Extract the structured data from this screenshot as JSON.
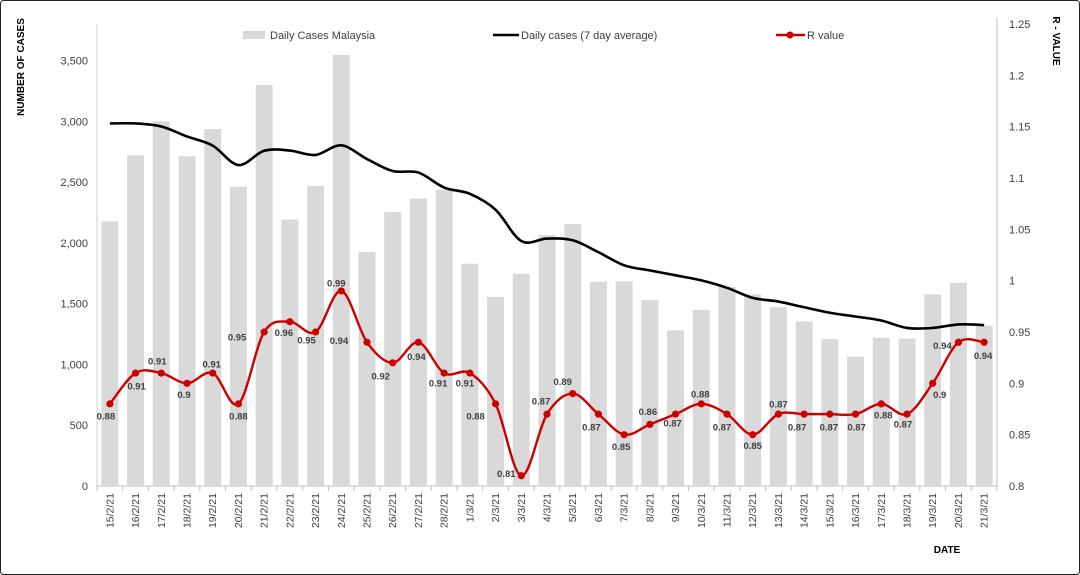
{
  "chart_data": {
    "type": "bar",
    "xlabel": "DATE",
    "ylabel": "NUMBER OF CASES",
    "y2label": "R - VALUE",
    "ylim": [
      0,
      3800
    ],
    "y2lim": [
      0.8,
      1.25
    ],
    "grid": false,
    "yticks": [
      {
        "value": 0,
        "label": "0"
      },
      {
        "value": 500,
        "label": "500"
      },
      {
        "value": 1000,
        "label": "1,000"
      },
      {
        "value": 1500,
        "label": "1,500"
      },
      {
        "value": 2000,
        "label": "2,000"
      },
      {
        "value": 2500,
        "label": "2,500"
      },
      {
        "value": 3000,
        "label": "3,000"
      },
      {
        "value": 3500,
        "label": "3,500"
      }
    ],
    "y2ticks": [
      {
        "value": 0.8,
        "label": "0.8"
      },
      {
        "value": 0.85,
        "label": "0.85"
      },
      {
        "value": 0.9,
        "label": "0.9"
      },
      {
        "value": 0.95,
        "label": "0.95"
      },
      {
        "value": 1.0,
        "label": "1"
      },
      {
        "value": 1.05,
        "label": "1.05"
      },
      {
        "value": 1.1,
        "label": "1.1"
      },
      {
        "value": 1.15,
        "label": "1.15"
      },
      {
        "value": 1.2,
        "label": "1.2"
      },
      {
        "value": 1.25,
        "label": "1.25"
      }
    ],
    "categories": [
      "15/2/21",
      "16/2/21",
      "17/2/21",
      "18/2/21",
      "19/2/21",
      "20/2/21",
      "21/2/21",
      "22/2/21",
      "23/2/21",
      "24/2/21",
      "25/2/21",
      "26/2/21",
      "27/2/21",
      "28/2/21",
      "1/3/21",
      "2/3/21",
      "3/3/21",
      "4/3/21",
      "5/3/21",
      "6/3/21",
      "7/3/21",
      "8/3/21",
      "9/3/21",
      "10/3/21",
      "11/3/21",
      "12/3/21",
      "13/3/21",
      "14/3/21",
      "15/3/21",
      "16/3/21",
      "17/3/21",
      "18/3/21",
      "19/3/21",
      "20/3/21",
      "21/3/21"
    ],
    "series": [
      {
        "name": "Daily Cases Malaysia",
        "type": "bar",
        "secondary_axis": false,
        "color": "#d9d9d9",
        "values": [
          2176,
          2720,
          2998,
          2712,
          2936,
          2461,
          3297,
          2192,
          2468,
          3545,
          1924,
          2253,
          2364,
          2437,
          1828,
          1555,
          1745,
          2063,
          2154,
          1680,
          1683,
          1529,
          1280,
          1448,
          1637,
          1575,
          1470,
          1354,
          1208,
          1063,
          1219,
          1213,
          1575,
          1671,
          1319
        ]
      },
      {
        "name": "Daily cases (7 day average)",
        "type": "line",
        "secondary_axis": false,
        "color": "#000000",
        "values": [
          2982,
          2982,
          2957,
          2875,
          2800,
          2640,
          2757,
          2759,
          2723,
          2802,
          2689,
          2591,
          2578,
          2455,
          2403,
          2272,
          2015,
          2035,
          2021,
          1923,
          1815,
          1773,
          1733,
          1691,
          1630,
          1547,
          1517,
          1470,
          1425,
          1394,
          1361,
          1300,
          1300,
          1329,
          1324
        ]
      },
      {
        "name": "R value",
        "type": "line",
        "secondary_axis": true,
        "color": "#cc0000",
        "values": [
          0.88,
          0.91,
          0.91,
          0.9,
          0.91,
          0.88,
          0.95,
          0.96,
          0.95,
          0.99,
          0.94,
          0.92,
          0.94,
          0.91,
          0.91,
          0.88,
          0.81,
          0.87,
          0.89,
          0.87,
          0.85,
          0.86,
          0.87,
          0.88,
          0.87,
          0.85,
          0.87,
          0.87,
          0.87,
          0.87,
          0.88,
          0.87,
          0.9,
          0.94,
          0.94
        ]
      }
    ]
  }
}
